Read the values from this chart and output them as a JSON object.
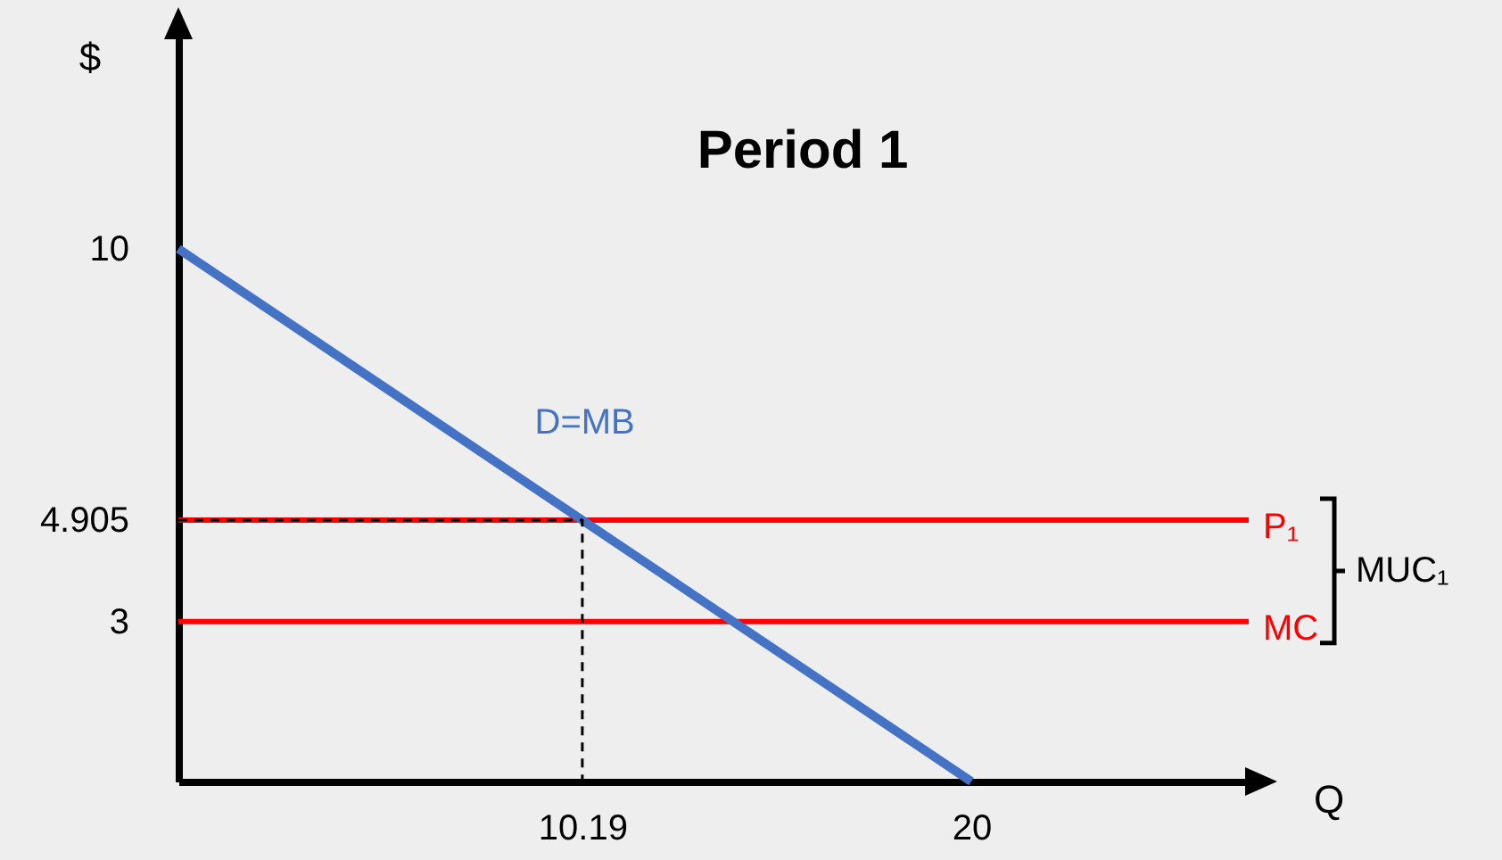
{
  "chart_data": {
    "type": "line",
    "title": "Period 1",
    "xlabel": "Q",
    "ylabel": "$",
    "xlim": [
      0,
      27
    ],
    "xticks": [
      10.19,
      20
    ],
    "ylim": [
      0,
      14
    ],
    "yticks": [
      3,
      4.905,
      10
    ],
    "series": [
      {
        "name": "D=MB",
        "color": "#4472c4",
        "x": [
          0,
          20
        ],
        "values": [
          10,
          0
        ]
      },
      {
        "color": "#000000",
        "x": [
          0,
          10.19,
          10.19
        ],
        "values": [
          4.905,
          4.905,
          0
        ],
        "line_style": "dashed"
      }
    ],
    "ref_lines": [
      {
        "axis": "y",
        "value": 4.905,
        "label": "P₁",
        "color": "#ff0000"
      },
      {
        "axis": "y",
        "value": 3,
        "label": "MC",
        "color": "#ff0000"
      }
    ],
    "annotations": [
      "MUC₁"
    ],
    "marker": "none"
  }
}
